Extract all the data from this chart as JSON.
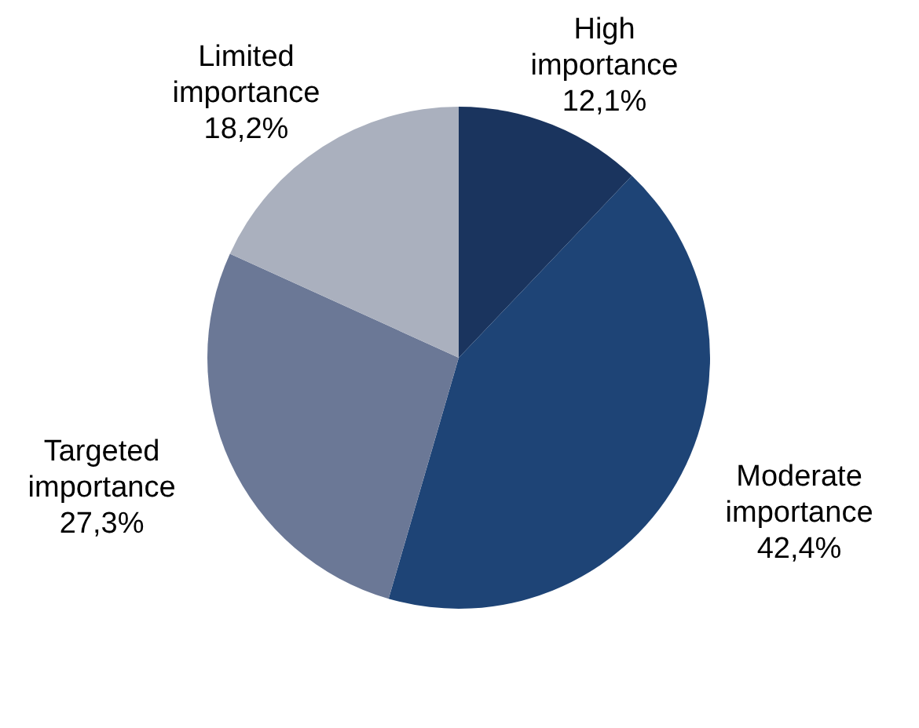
{
  "chart_data": {
    "type": "pie",
    "categories": [
      "High importance",
      "Moderate importance",
      "Targeted importance",
      "Limited importance"
    ],
    "values": [
      12.1,
      42.4,
      27.3,
      18.2
    ],
    "colors": [
      "#1a345e",
      "#1e4476",
      "#6b7896",
      "#aab0be"
    ],
    "value_labels": [
      "12,1%",
      "42,4%",
      "27,3%",
      "18,2%"
    ]
  }
}
